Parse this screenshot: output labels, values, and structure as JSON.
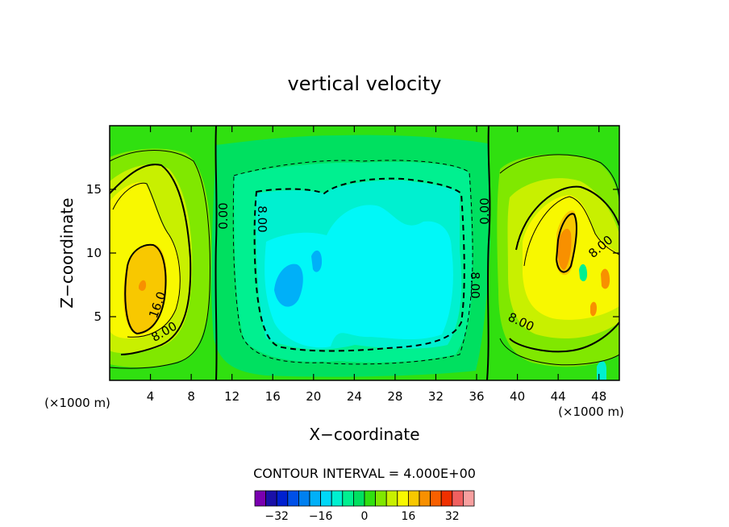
{
  "chart_data": {
    "type": "contour",
    "title": "vertical velocity",
    "xlabel": "X−coordinate",
    "ylabel": "Z−coordinate",
    "x_unit": "(×1000 m)",
    "z_unit": "(×1000 m)",
    "xlim": [
      0,
      50
    ],
    "ylim": [
      0,
      20
    ],
    "x_ticks": [
      4,
      8,
      12,
      16,
      20,
      24,
      28,
      32,
      36,
      40,
      44,
      48
    ],
    "y_ticks": [
      5,
      10,
      15
    ],
    "contour_interval_text": "CONTOUR INTERVAL = 4.000E+00",
    "contour_interval": 4.0,
    "colorbar_levels": [
      -36,
      -32,
      -28,
      -24,
      -20,
      -16,
      -12,
      -8,
      -4,
      0,
      4,
      8,
      12,
      16,
      20,
      24,
      28,
      32,
      36
    ],
    "colorbar_colors": [
      "#7a00b0",
      "#1a10a8",
      "#0020d0",
      "#0050e8",
      "#0080f0",
      "#00b0f8",
      "#00d8f8",
      "#00f0d0",
      "#00f090",
      "#00e060",
      "#30e010",
      "#80e800",
      "#c8f000",
      "#f8f800",
      "#f8c800",
      "#f89000",
      "#f86000",
      "#f03000",
      "#f06060",
      "#f8a0a0"
    ],
    "colorbar_ticks": [
      "−32",
      "−16",
      "0",
      "16",
      "32"
    ],
    "colorbar_tick_values": [
      -32,
      -16,
      0,
      16,
      32
    ],
    "contour_labels": [
      {
        "text": "0.00",
        "x": 10.5,
        "z": 13,
        "angle": -90
      },
      {
        "text": "8.00",
        "x": 15.5,
        "z": 12.8,
        "angle": 90
      },
      {
        "text": "16.0",
        "x": 4.5,
        "z": 6.0,
        "angle": -70
      },
      {
        "text": "8.00",
        "x": 5.2,
        "z": 3.8,
        "angle": -30
      },
      {
        "text": "8.00",
        "x": 35.2,
        "z": 7.8,
        "angle": 90
      },
      {
        "text": "0.00",
        "x": 36.4,
        "z": 13.2,
        "angle": -90
      },
      {
        "text": "8.00",
        "x": 40.0,
        "z": 4.5,
        "angle": 25
      },
      {
        "text": "8.00",
        "x": 48.0,
        "z": 10.3,
        "angle": -40
      }
    ],
    "features": [
      {
        "kind": "updraft",
        "x": 3.2,
        "z": 7.5,
        "max": 20
      },
      {
        "kind": "updraft",
        "x": 44.5,
        "z": 10,
        "max": 16
      },
      {
        "kind": "downdraft",
        "x": 18,
        "z": 7.5,
        "min": -16
      },
      {
        "kind": "downdraft_region",
        "x": [
          14,
          35
        ],
        "z": [
          2,
          16
        ],
        "min": -12
      }
    ]
  }
}
